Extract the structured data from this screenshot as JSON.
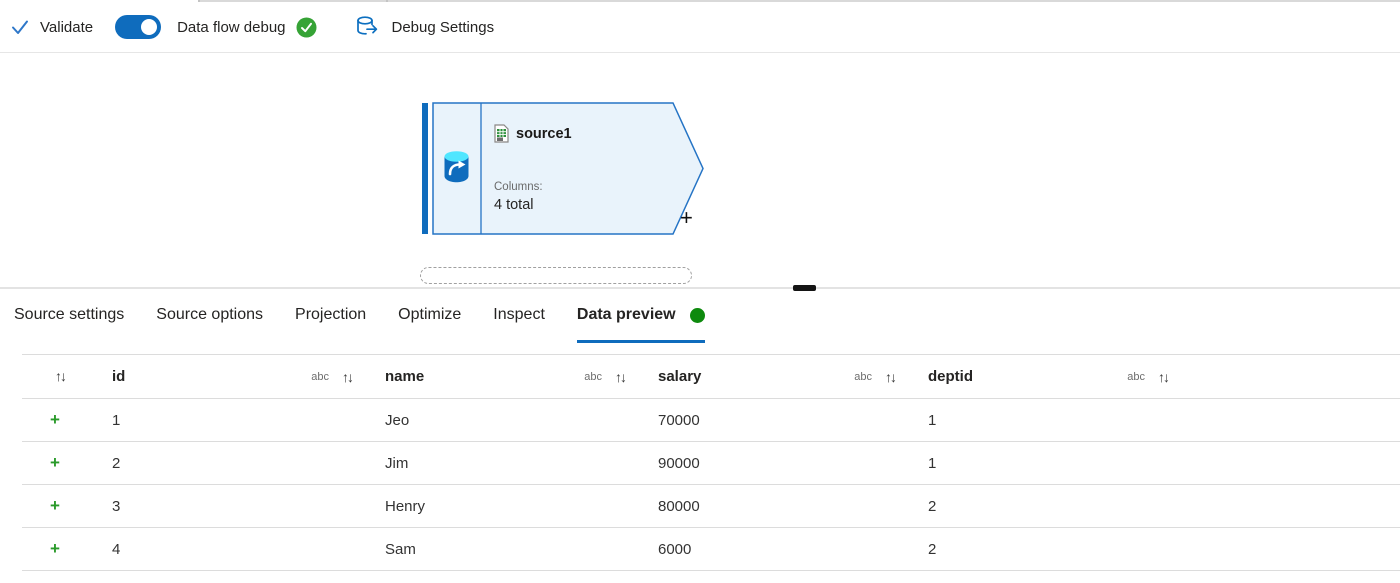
{
  "toolbar": {
    "validate_label": "Validate",
    "dataflow_debug_label": "Data flow debug",
    "dataflow_debug_on": true,
    "debug_settings_label": "Debug Settings"
  },
  "canvas": {
    "node": {
      "title": "source1",
      "columns_label": "Columns:",
      "columns_value": "4 total",
      "add_label": "+"
    }
  },
  "tabs": [
    {
      "label": "Source settings",
      "active": false
    },
    {
      "label": "Source options",
      "active": false
    },
    {
      "label": "Projection",
      "active": false
    },
    {
      "label": "Optimize",
      "active": false
    },
    {
      "label": "Inspect",
      "active": false
    },
    {
      "label": "Data preview",
      "active": true,
      "status_dot": true
    }
  ],
  "preview": {
    "columns": [
      {
        "name": "id",
        "type": "abc"
      },
      {
        "name": "name",
        "type": "abc"
      },
      {
        "name": "salary",
        "type": "abc"
      },
      {
        "name": "deptid",
        "type": "abc"
      }
    ],
    "rows": [
      [
        "1",
        "Jeo",
        "70000",
        "1"
      ],
      [
        "2",
        "Jim",
        "90000",
        "1"
      ],
      [
        "3",
        "Henry",
        "80000",
        "2"
      ],
      [
        "4",
        "Sam",
        "6000",
        "2"
      ]
    ],
    "row_add_label": "+"
  },
  "icons": {
    "validate_check": "✓",
    "debug_status": "check-circle",
    "debug_settings": "database-arrow",
    "sort": "↑↓",
    "type_string": "abc",
    "row_add": "+",
    "node_dataset": "database-arrow-filled",
    "node_file": "csv-file"
  },
  "colors": {
    "accent_blue": "#0f6cbd",
    "node_fill": "#e9f3fb",
    "node_border": "#2574c5",
    "status_green": "#36a336",
    "dot_green": "#0e8a0e",
    "plus_green": "#2a9a2a",
    "divider": "#e3e3e3",
    "grid_line": "#dcdcdc"
  }
}
